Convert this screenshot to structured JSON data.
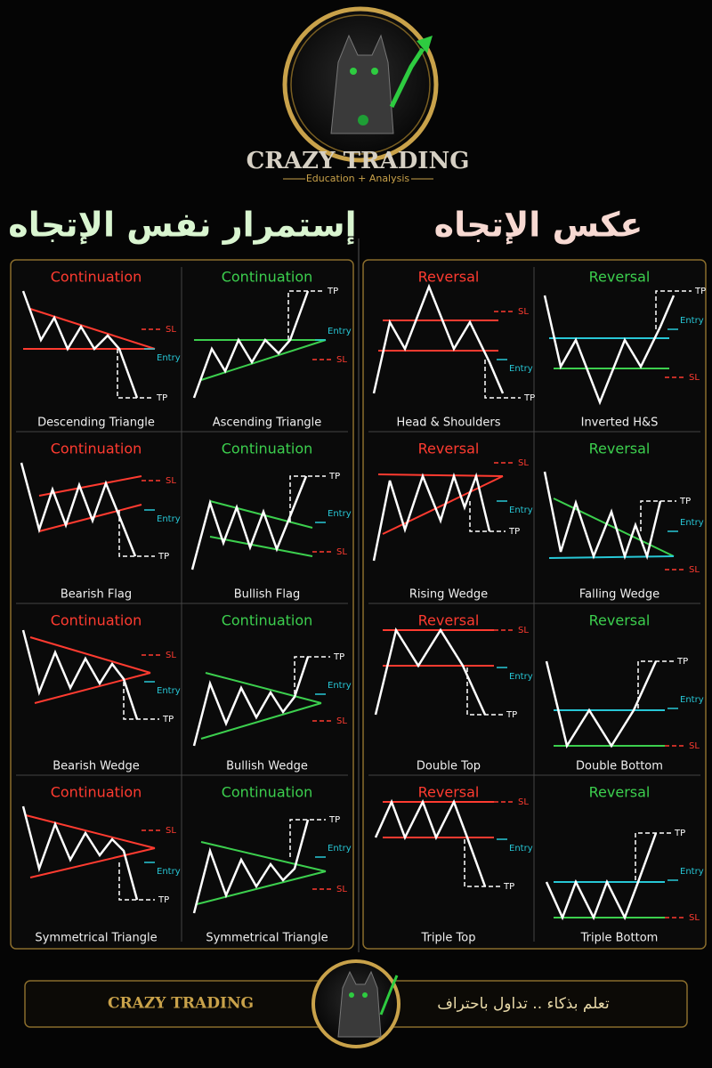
{
  "header": {
    "brand": "CRAZY TRADING",
    "tagline": "Education + Analysis"
  },
  "sections": [
    {
      "title": "إستمرار نفس الإتجاه",
      "patterns": [
        {
          "tag": "Continuation",
          "name": "Descending Triangle",
          "sl": "SL",
          "entry": "Entry",
          "tp": "TP"
        },
        {
          "tag": "Continuation",
          "name": "Ascending Triangle",
          "sl": "SL",
          "entry": "Entry",
          "tp": "TP"
        },
        {
          "tag": "Continuation",
          "name": "Bearish Flag",
          "sl": "SL",
          "entry": "Entry",
          "tp": "TP"
        },
        {
          "tag": "Continuation",
          "name": "Bullish Flag",
          "sl": "SL",
          "entry": "Entry",
          "tp": "TP"
        },
        {
          "tag": "Continuation",
          "name": "Bearish Wedge",
          "sl": "SL",
          "entry": "Entry",
          "tp": "TP"
        },
        {
          "tag": "Continuation",
          "name": "Bullish Wedge",
          "sl": "SL",
          "entry": "Entry",
          "tp": "TP"
        },
        {
          "tag": "Continuation",
          "name": "Symmetrical Triangle",
          "sl": "SL",
          "entry": "Entry",
          "tp": "TP"
        },
        {
          "tag": "Continuation",
          "name": "Symmetrical Triangle",
          "sl": "SL",
          "entry": "Entry",
          "tp": "TP"
        }
      ]
    },
    {
      "title": "عكس الإتجاه",
      "patterns": [
        {
          "tag": "Reversal",
          "name": "Head & Shoulders",
          "sl": "SL",
          "entry": "Entry",
          "tp": "TP"
        },
        {
          "tag": "Reversal",
          "name": "Inverted H&S",
          "sl": "SL",
          "entry": "Entry",
          "tp": "TP"
        },
        {
          "tag": "Reversal",
          "name": "Rising Wedge",
          "sl": "SL",
          "entry": "Entry",
          "tp": "TP"
        },
        {
          "tag": "Reversal",
          "name": "Falling Wedge",
          "sl": "SL",
          "entry": "Entry",
          "tp": "TP"
        },
        {
          "tag": "Reversal",
          "name": "Double Top",
          "sl": "SL",
          "entry": "Entry",
          "tp": "TP"
        },
        {
          "tag": "Reversal",
          "name": "Double Bottom",
          "sl": "SL",
          "entry": "Entry",
          "tp": "TP"
        },
        {
          "tag": "Reversal",
          "name": "Triple Top",
          "sl": "SL",
          "entry": "Entry",
          "tp": "TP"
        },
        {
          "tag": "Reversal",
          "name": "Triple Bottom",
          "sl": "SL",
          "entry": "Entry",
          "tp": "TP"
        }
      ]
    }
  ],
  "footer": {
    "brand": "CRAZY TRADING",
    "slogan": "تعلم بذكاء .. تداول باحتراف"
  }
}
